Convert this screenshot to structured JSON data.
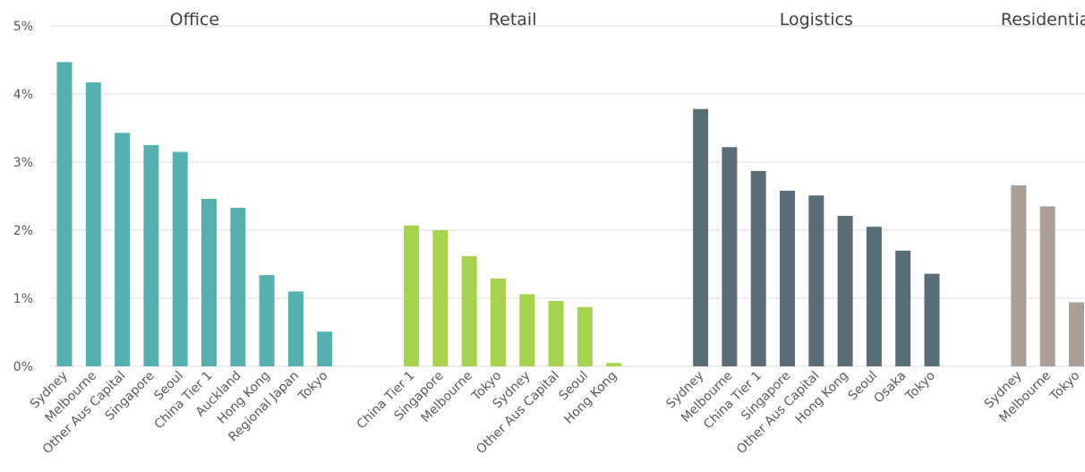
{
  "chart_data": {
    "type": "bar",
    "y_ticks": [
      "0%",
      "1%",
      "2%",
      "3%",
      "4%",
      "5%"
    ],
    "ylim": [
      0,
      5
    ],
    "grid": true,
    "groups": [
      {
        "name": "Office",
        "color": "#56b0b0",
        "categories": [
          "Sydney",
          "Melbourne",
          "Other Aus Capital",
          "Singapore",
          "Seoul",
          "China Tier 1",
          "Auckland",
          "Hong Kong",
          "Regional Japan",
          "Tokyo"
        ],
        "values": [
          4.47,
          4.17,
          3.43,
          3.25,
          3.15,
          2.46,
          2.33,
          1.34,
          1.1,
          0.51
        ]
      },
      {
        "name": "Retail",
        "color": "#a6d24e",
        "categories": [
          "China Tier 1",
          "Singapore",
          "Melbourne",
          "Tokyo",
          "Sydney",
          "Other Aus Capital",
          "Seoul",
          "Hong Kong"
        ],
        "values": [
          2.07,
          2.0,
          1.62,
          1.29,
          1.06,
          0.96,
          0.87,
          0.05
        ]
      },
      {
        "name": "Logistics",
        "color": "#5a6e77",
        "categories": [
          "Sydney",
          "Melbourne",
          "China Tier 1",
          "Singapore",
          "Other Aus Capital",
          "Hong Kong",
          "Seoul",
          "Osaka",
          "Tokyo"
        ],
        "values": [
          3.78,
          3.22,
          2.87,
          2.58,
          2.51,
          2.21,
          2.05,
          1.7,
          1.36
        ]
      },
      {
        "name": "Residential",
        "color": "#aaa097",
        "categories": [
          "Sydney",
          "Melbourne",
          "Tokyo"
        ],
        "values": [
          2.66,
          2.35,
          0.94
        ]
      }
    ]
  }
}
